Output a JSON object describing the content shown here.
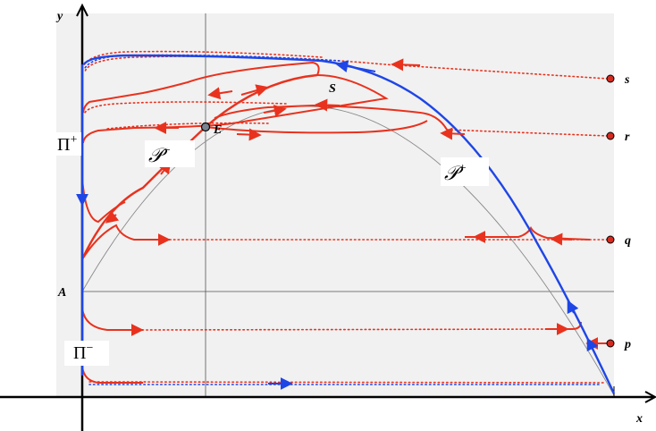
{
  "axes": {
    "x_label": "x",
    "y_label": "y"
  },
  "points": {
    "A": "A",
    "E": "E",
    "S": "S",
    "p": "p",
    "q": "q",
    "r": "r",
    "s": "s"
  },
  "curves": {
    "p_minus_base": "𝒫",
    "p_minus_sup": "−",
    "p_plus_base": "𝒫",
    "p_plus_sup": "+"
  },
  "manifolds": {
    "pi_plus_base": "Π",
    "pi_plus_sup": "+",
    "pi_minus_base": "Π",
    "pi_minus_sup": "−"
  },
  "colors": {
    "background_panel": "#f1f1f1",
    "orbit_red": "#e8321e",
    "manifold_blue": "#1e46e6",
    "parabola_gray": "#8a8a8a",
    "axis": "#000000",
    "point_fill": "#d42a1f",
    "equilibrium_fill": "#7a8490"
  }
}
